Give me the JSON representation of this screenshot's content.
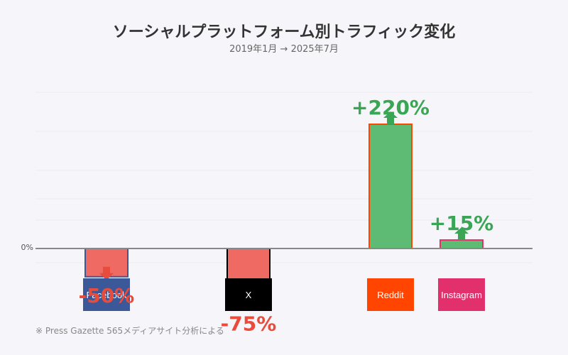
{
  "title": "ソーシャルプラットフォーム別トラフィック変化",
  "subtitle": "2019年1月 → 2025年7月",
  "footnote": "※ Press Gazette 565メディアサイト分析による",
  "colors": {
    "positive": "#3aa655",
    "negative": "#e74c3c",
    "bar_positive_fill": "#5dbb73",
    "bar_negative_fill": "#ef6a62",
    "baseline": "#888888",
    "grid": "#ebebf2"
  },
  "chart_data": {
    "type": "bar",
    "zero_label": "0%",
    "ylim": [
      -90,
      230
    ],
    "grid": true,
    "categories": [
      "Facebook",
      "X",
      "Reddit",
      "Instagram"
    ],
    "values": [
      -50,
      -75,
      220,
      15
    ],
    "value_labels": [
      "-50%",
      "-75%",
      "+220%",
      "+15%"
    ],
    "logo_colors": [
      "#3b5998",
      "#000000",
      "#ff4500",
      "#e1306c"
    ]
  }
}
